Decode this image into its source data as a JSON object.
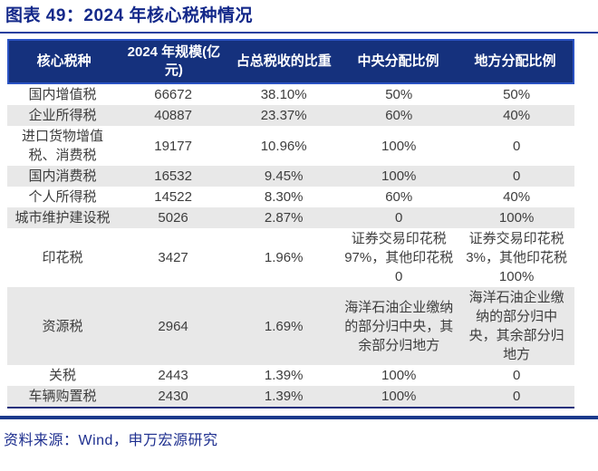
{
  "title": "图表 49：2024 年核心税种情况",
  "table": {
    "columns": [
      "核心税种",
      "2024 年规模(亿元)",
      "占总税收的比重",
      "中央分配比例",
      "地方分配比例"
    ],
    "rows": [
      {
        "name": "国内增值税",
        "scale": "66672",
        "share": "38.10%",
        "central": "50%",
        "local": "50%"
      },
      {
        "name": "企业所得税",
        "scale": "40887",
        "share": "23.37%",
        "central": "60%",
        "local": "40%"
      },
      {
        "name": "进口货物增值税、消费税",
        "scale": "19177",
        "share": "10.96%",
        "central": "100%",
        "local": "0"
      },
      {
        "name": "国内消费税",
        "scale": "16532",
        "share": "9.45%",
        "central": "100%",
        "local": "0"
      },
      {
        "name": "个人所得税",
        "scale": "14522",
        "share": "8.30%",
        "central": "60%",
        "local": "40%"
      },
      {
        "name": "城市维护建设税",
        "scale": "5026",
        "share": "2.87%",
        "central": "0",
        "local": "100%"
      },
      {
        "name": "印花税",
        "scale": "3427",
        "share": "1.96%",
        "central": "证券交易印花税 97%，其他印花税 0",
        "local": "证券交易印花税 3%，其他印花税 100%"
      },
      {
        "name": "资源税",
        "scale": "2964",
        "share": "1.69%",
        "central": "海洋石油企业缴纳的部分归中央，其余部分归地方",
        "local": "海洋石油企业缴纳的部分归中央，其余部分归地方"
      },
      {
        "name": "关税",
        "scale": "2443",
        "share": "1.39%",
        "central": "100%",
        "local": "0"
      },
      {
        "name": "车辆购置税",
        "scale": "2430",
        "share": "1.39%",
        "central": "100%",
        "local": "0"
      }
    ]
  },
  "footer": {
    "source": "资料来源：Wind，申万宏源研究"
  },
  "colors": {
    "title_text": "#14298a",
    "rule": "#27409f",
    "header_bg": "#15317d",
    "header_border": "#2a52c3",
    "header_text": "#ffffff",
    "stripe": "#e8e8e8",
    "body_text": "#3d3d3d",
    "table_border": "#22307c",
    "rule_heavy": "#1b3a8c",
    "source_text": "#1e2f8f"
  }
}
